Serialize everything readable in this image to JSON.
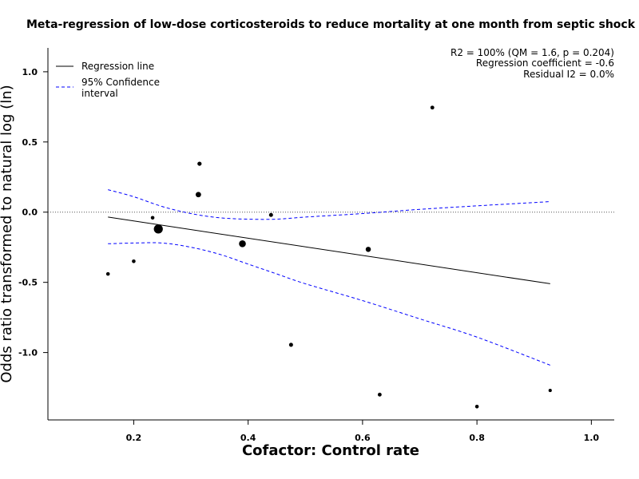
{
  "chart_data": {
    "type": "scatter",
    "title": "Meta-regression of  low-dose corticosteroids to reduce mortality at one month from septic shock",
    "xlabel": "Cofactor:  Control rate",
    "ylabel": "Odds ratio transformed to natural log (ln)",
    "xlim": [
      0.05,
      1.04
    ],
    "ylim": [
      -1.48,
      1.17
    ],
    "x_ticks": [
      0.2,
      0.4,
      0.6,
      0.8,
      1.0
    ],
    "x_tick_labels": [
      "0.2",
      "0.4",
      "0.6",
      "0.8",
      "1.0"
    ],
    "y_ticks": [
      1.0,
      0.5,
      0.0,
      -0.5,
      -1.0
    ],
    "y_tick_labels": [
      "1.0",
      "0.5",
      "0.0",
      "-0.5",
      "-1.0"
    ],
    "reference_line_y": 0,
    "points": [
      {
        "x": 0.155,
        "y": -0.44,
        "weight": 1
      },
      {
        "x": 0.2,
        "y": -0.35,
        "weight": 1
      },
      {
        "x": 0.233,
        "y": -0.04,
        "weight": 1
      },
      {
        "x": 0.243,
        "y": -0.12,
        "weight": 6
      },
      {
        "x": 0.313,
        "y": 0.125,
        "weight": 2.2
      },
      {
        "x": 0.315,
        "y": 0.345,
        "weight": 1.3
      },
      {
        "x": 0.39,
        "y": -0.225,
        "weight": 3.5
      },
      {
        "x": 0.44,
        "y": -0.02,
        "weight": 1.2
      },
      {
        "x": 0.475,
        "y": -0.945,
        "weight": 1.2
      },
      {
        "x": 0.61,
        "y": -0.265,
        "weight": 2
      },
      {
        "x": 0.63,
        "y": -1.3,
        "weight": 1.1
      },
      {
        "x": 0.722,
        "y": 0.745,
        "weight": 1.1
      },
      {
        "x": 0.8,
        "y": -1.385,
        "weight": 1
      },
      {
        "x": 0.928,
        "y": -1.27,
        "weight": 0.8
      }
    ],
    "regression_line": [
      [
        0.155,
        -0.035
      ],
      [
        0.928,
        -0.51
      ]
    ],
    "ci_upper": [
      [
        0.155,
        0.16
      ],
      [
        0.2,
        0.11
      ],
      [
        0.25,
        0.04
      ],
      [
        0.3,
        -0.01
      ],
      [
        0.35,
        -0.04
      ],
      [
        0.4,
        -0.05
      ],
      [
        0.45,
        -0.05
      ],
      [
        0.5,
        -0.035
      ],
      [
        0.6,
        -0.01
      ],
      [
        0.7,
        0.02
      ],
      [
        0.8,
        0.045
      ],
      [
        0.928,
        0.075
      ]
    ],
    "ci_lower": [
      [
        0.155,
        -0.225
      ],
      [
        0.2,
        -0.22
      ],
      [
        0.25,
        -0.22
      ],
      [
        0.3,
        -0.25
      ],
      [
        0.35,
        -0.3
      ],
      [
        0.4,
        -0.37
      ],
      [
        0.45,
        -0.44
      ],
      [
        0.5,
        -0.51
      ],
      [
        0.6,
        -0.63
      ],
      [
        0.7,
        -0.76
      ],
      [
        0.8,
        -0.89
      ],
      [
        0.928,
        -1.09
      ]
    ],
    "legend": {
      "placement": "top-left",
      "entries": [
        {
          "label": "Regression line",
          "style": "solid",
          "color": "#000000"
        },
        {
          "label_lines": [
            "95% Confidence",
            "interval"
          ],
          "style": "dashed",
          "color": "#0000ff"
        }
      ]
    },
    "stats_text": [
      "R2 = 100% (QM = 1.6, p = 0.204)",
      "Regression coefficient = -0.6",
      "Residual I2 = 0.0%"
    ],
    "colors": {
      "regression": "#000000",
      "ci": "#0000ff",
      "reference": "#555555",
      "points": "#000000"
    }
  }
}
